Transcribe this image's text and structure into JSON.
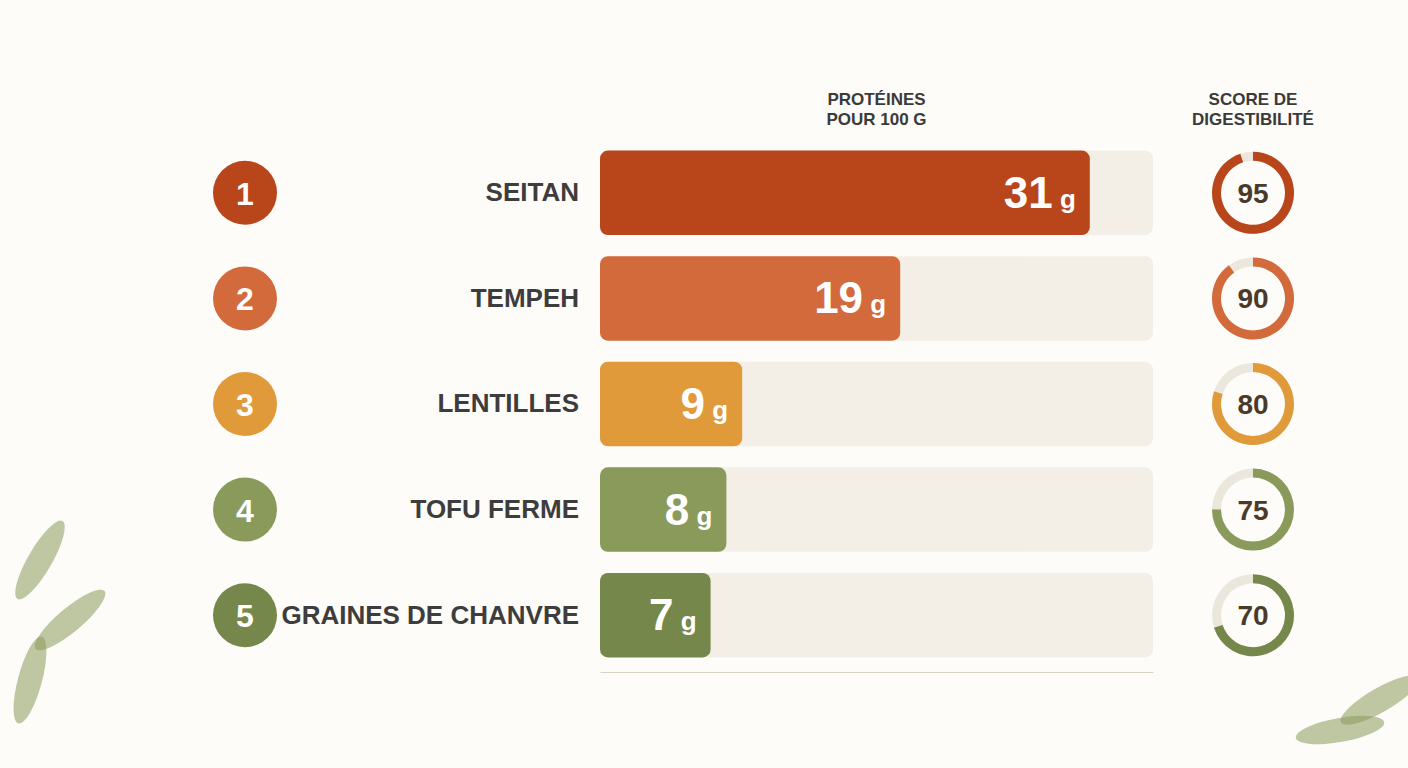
{
  "chart_data": {
    "type": "bar",
    "orientation": "horizontal",
    "categories": [
      "SEITAN",
      "TEMPEH",
      "LENTILLES",
      "TOFU FERME",
      "GRAINES DE CHANVRE"
    ],
    "ranks": [
      1,
      2,
      3,
      4,
      5
    ],
    "series": [
      {
        "name": "PROTÉINES POUR 100 G",
        "values": [
          31,
          19,
          9,
          8,
          7
        ],
        "value_labels": [
          "31 g",
          "19 g",
          "9 g",
          "8 g",
          "7 g"
        ],
        "colors": [
          "#b9461b",
          "#d36a3c",
          "#e09a3a",
          "#8a9a5b",
          "#76874b"
        ]
      }
    ],
    "scores": {
      "name": "SCORE DE DIGESTIBILITÉ",
      "values": [
        95,
        90,
        80,
        75,
        70
      ],
      "lim": [
        0,
        100
      ]
    },
    "xlim": [
      0,
      35
    ],
    "tick_labels": false,
    "data_labels": true
  }
}
